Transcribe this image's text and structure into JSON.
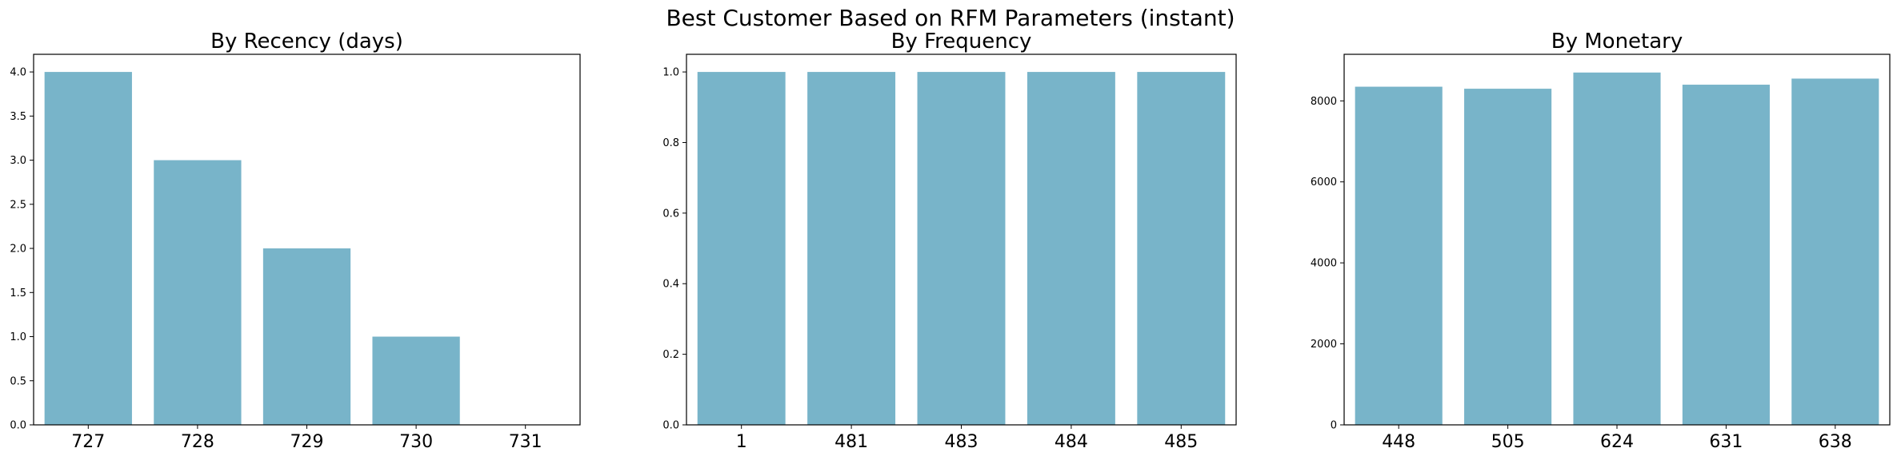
{
  "figure": {
    "title": "Best Customer Based on RFM Parameters (instant)"
  },
  "chart_data": [
    {
      "type": "bar",
      "title": "By Recency (days)",
      "color": "#78b4c9",
      "categories": [
        "727",
        "728",
        "729",
        "730",
        "731"
      ],
      "values": [
        4,
        3,
        2,
        1,
        0
      ],
      "ylim": [
        0,
        4.2
      ],
      "yticks": [
        0.0,
        0.5,
        1.0,
        1.5,
        2.0,
        2.5,
        3.0,
        3.5,
        4.0
      ],
      "ytick_labels": [
        "0.0",
        "0.5",
        "1.0",
        "1.5",
        "2.0",
        "2.5",
        "3.0",
        "3.5",
        "4.0"
      ],
      "grid": false
    },
    {
      "type": "bar",
      "title": "By Frequency",
      "color": "#78b4c9",
      "categories": [
        "1",
        "481",
        "483",
        "484",
        "485"
      ],
      "values": [
        1,
        1,
        1,
        1,
        1
      ],
      "ylim": [
        0,
        1.05
      ],
      "yticks": [
        0.0,
        0.2,
        0.4,
        0.6,
        0.8,
        1.0
      ],
      "ytick_labels": [
        "0.0",
        "0.2",
        "0.4",
        "0.6",
        "0.8",
        "1.0"
      ],
      "grid": false
    },
    {
      "type": "bar",
      "title": "By Monetary",
      "color": "#78b4c9",
      "categories": [
        "448",
        "505",
        "624",
        "631",
        "638"
      ],
      "values": [
        8350,
        8300,
        8700,
        8400,
        8550
      ],
      "ylim": [
        0,
        9150
      ],
      "yticks": [
        0,
        2000,
        4000,
        6000,
        8000
      ],
      "ytick_labels": [
        "0",
        "2000",
        "4000",
        "6000",
        "8000"
      ],
      "grid": false
    }
  ]
}
